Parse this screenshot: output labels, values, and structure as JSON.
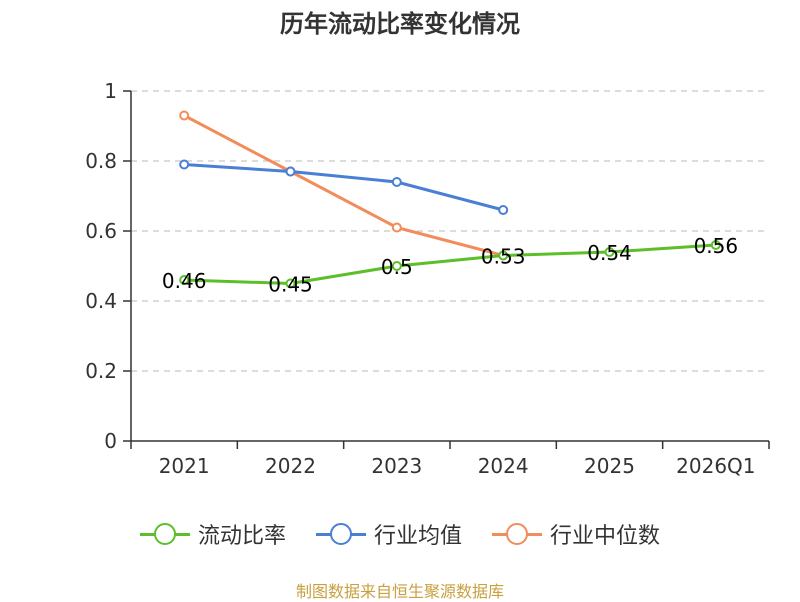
{
  "chart_data": {
    "type": "line",
    "title": "历年流动比率变化情况",
    "categories": [
      "2021",
      "2022",
      "2023",
      "2024",
      "2025",
      "2026Q1"
    ],
    "ylim": [
      0,
      1
    ],
    "yticks": [
      "0",
      "0.2",
      "0.4",
      "0.6",
      "0.8",
      "1"
    ],
    "ytick_values": [
      0,
      0.2,
      0.4,
      0.6,
      0.8,
      1
    ],
    "grid": true,
    "legend_position": "bottom",
    "series": [
      {
        "name": "流动比率",
        "color": "#5cbf2a",
        "values": [
          0.46,
          0.45,
          0.5,
          0.53,
          0.54,
          0.56
        ],
        "labels": [
          "0.46",
          "0.45",
          "0.5",
          "0.53",
          "0.54",
          "0.56"
        ]
      },
      {
        "name": "行业均值",
        "color": "#4a7fd6",
        "values": [
          0.79,
          0.77,
          0.74,
          0.66,
          null,
          null
        ]
      },
      {
        "name": "行业中位数",
        "color": "#f28c5a",
        "values": [
          0.93,
          0.77,
          0.61,
          0.53,
          null,
          null
        ]
      }
    ]
  },
  "source": "制图数据来自恒生聚源数据库"
}
